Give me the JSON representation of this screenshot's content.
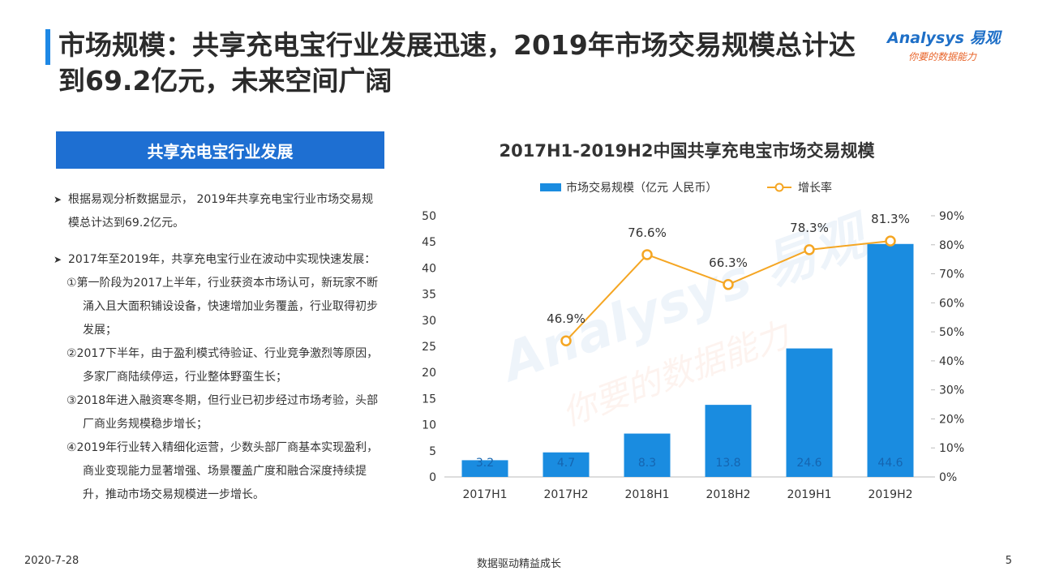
{
  "header": {
    "title": "市场规模：共享充电宝行业发展迅速，2019年市场交易规模总计达到69.2亿元，未来空间广阔",
    "logo_main": "Analysys 易观",
    "logo_sub": "你要的数据能力"
  },
  "left": {
    "section_title": "共享充电宝行业发展",
    "bullet1": "根据易观分析数据显示， 2019年共享充电宝行业市场交易规模总计达到69.2亿元。",
    "bullet2": "2017年至2019年，共享充电宝行业在波动中实现快速发展：",
    "stages": [
      "①第一阶段为2017上半年，行业获资本市场认可，新玩家不断涌入且大面积铺设设备，快速增加业务覆盖，行业取得初步发展；",
      "②2017下半年，由于盈利模式待验证、行业竞争激烈等原因，多家厂商陆续停运，行业整体野蛮生长；",
      "③2018年进入融资寒冬期，但行业已初步经过市场考验，头部厂商业务规模稳步增长；",
      "④2019年行业转入精细化运营，少数头部厂商基本实现盈利，商业变现能力显著增强、场景覆盖广度和融合深度持续提升，推动市场交易规模进一步增长。"
    ]
  },
  "chart_data": {
    "type": "bar",
    "title": "2017H1-2019H2中国共享充电宝市场交易规模",
    "categories": [
      "2017H1",
      "2017H2",
      "2018H1",
      "2018H2",
      "2019H1",
      "2019H2"
    ],
    "series": [
      {
        "name": "市场交易规模（亿元 人民币）",
        "type": "bar",
        "axis": "left",
        "values": [
          3.2,
          4.7,
          8.3,
          13.8,
          24.6,
          44.6
        ],
        "value_labels": [
          "3.2",
          "4.7",
          "8.3",
          "13.8",
          "24.6",
          "44.6"
        ]
      },
      {
        "name": "增长率",
        "type": "line",
        "axis": "right",
        "values": [
          null,
          46.9,
          76.6,
          66.3,
          78.3,
          81.3
        ],
        "value_labels": [
          "",
          "46.9%",
          "76.6%",
          "66.3%",
          "78.3%",
          "81.3%"
        ]
      }
    ],
    "y_left": {
      "min": 0,
      "max": 50,
      "ticks": [
        "0",
        "5",
        "10",
        "15",
        "20",
        "25",
        "30",
        "35",
        "40",
        "45",
        "50"
      ]
    },
    "y_right": {
      "min": 0,
      "max": 90,
      "ticks": [
        "0%",
        "10%",
        "20%",
        "30%",
        "40%",
        "50%",
        "60%",
        "70%",
        "80%",
        "90%"
      ]
    },
    "legend_position": "top",
    "grid": false,
    "colors": {
      "bar": "#1a8ce0",
      "line": "#f5a623"
    }
  },
  "footer": {
    "date": "2020-7-28",
    "slogan": "数据驱动精益成长",
    "page": "5"
  }
}
